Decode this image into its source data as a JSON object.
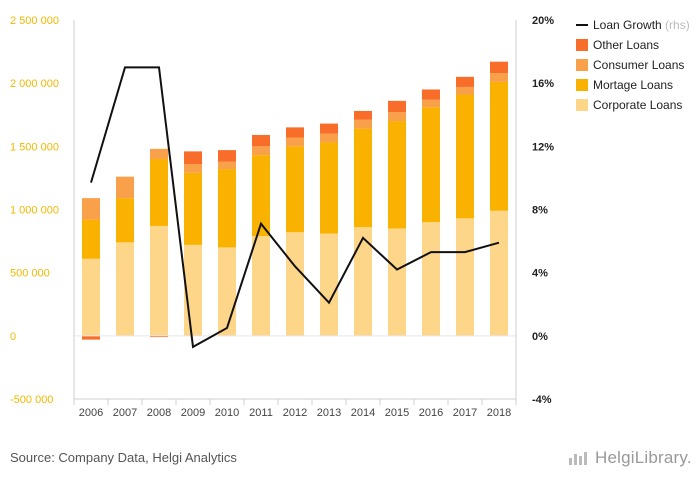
{
  "source": "Source: Company Data, Helgi Analytics",
  "brand": "HelgiLibrary.",
  "chart_data": {
    "type": "bar",
    "stacked": true,
    "categories": [
      "2006",
      "2007",
      "2008",
      "2009",
      "2010",
      "2011",
      "2012",
      "2013",
      "2014",
      "2015",
      "2016",
      "2017",
      "2018"
    ],
    "ylim": [
      -500000,
      2500000
    ],
    "yticks": [
      "2 500 000",
      "2 000 000",
      "1 500 000",
      "1 000 000",
      "500 000",
      "0",
      "-500 000"
    ],
    "y2lim": [
      -4,
      20
    ],
    "y2ticks": [
      "20%",
      "16%",
      "12%",
      "8%",
      "4%",
      "0%",
      "-4%"
    ],
    "series": [
      {
        "name": "Corporate Loans",
        "color": "#fdd68a",
        "values": [
          610000,
          740000,
          870000,
          720000,
          700000,
          790000,
          820000,
          810000,
          860000,
          850000,
          900000,
          930000,
          990000
        ]
      },
      {
        "name": "Mortage Loans",
        "color": "#f9b200",
        "values": [
          310000,
          350000,
          530000,
          570000,
          620000,
          640000,
          680000,
          720000,
          780000,
          850000,
          910000,
          980000,
          1020000
        ]
      },
      {
        "name": "Consumer Loans",
        "color": "#f9a04b",
        "values": [
          170000,
          170000,
          80000,
          70000,
          60000,
          70000,
          70000,
          70000,
          70000,
          70000,
          60000,
          60000,
          70000
        ]
      },
      {
        "name": "Other Loans",
        "color": "#f96d2a",
        "values": [
          -30000,
          0,
          -10000,
          100000,
          90000,
          90000,
          80000,
          80000,
          70000,
          90000,
          80000,
          80000,
          90000
        ]
      }
    ],
    "line": {
      "name": "Loan Growth",
      "name_suffix": "(rhs)",
      "color": "#111111",
      "values": [
        9.7,
        17.0,
        17.0,
        -0.7,
        0.5,
        7.1,
        4.4,
        2.1,
        6.2,
        4.2,
        5.3,
        5.3,
        5.9
      ]
    },
    "legend": [
      "Loan Growth",
      "Other Loans",
      "Consumer Loans",
      "Mortage Loans",
      "Corporate Loans"
    ],
    "legend_position": "top-right",
    "grid": false
  }
}
